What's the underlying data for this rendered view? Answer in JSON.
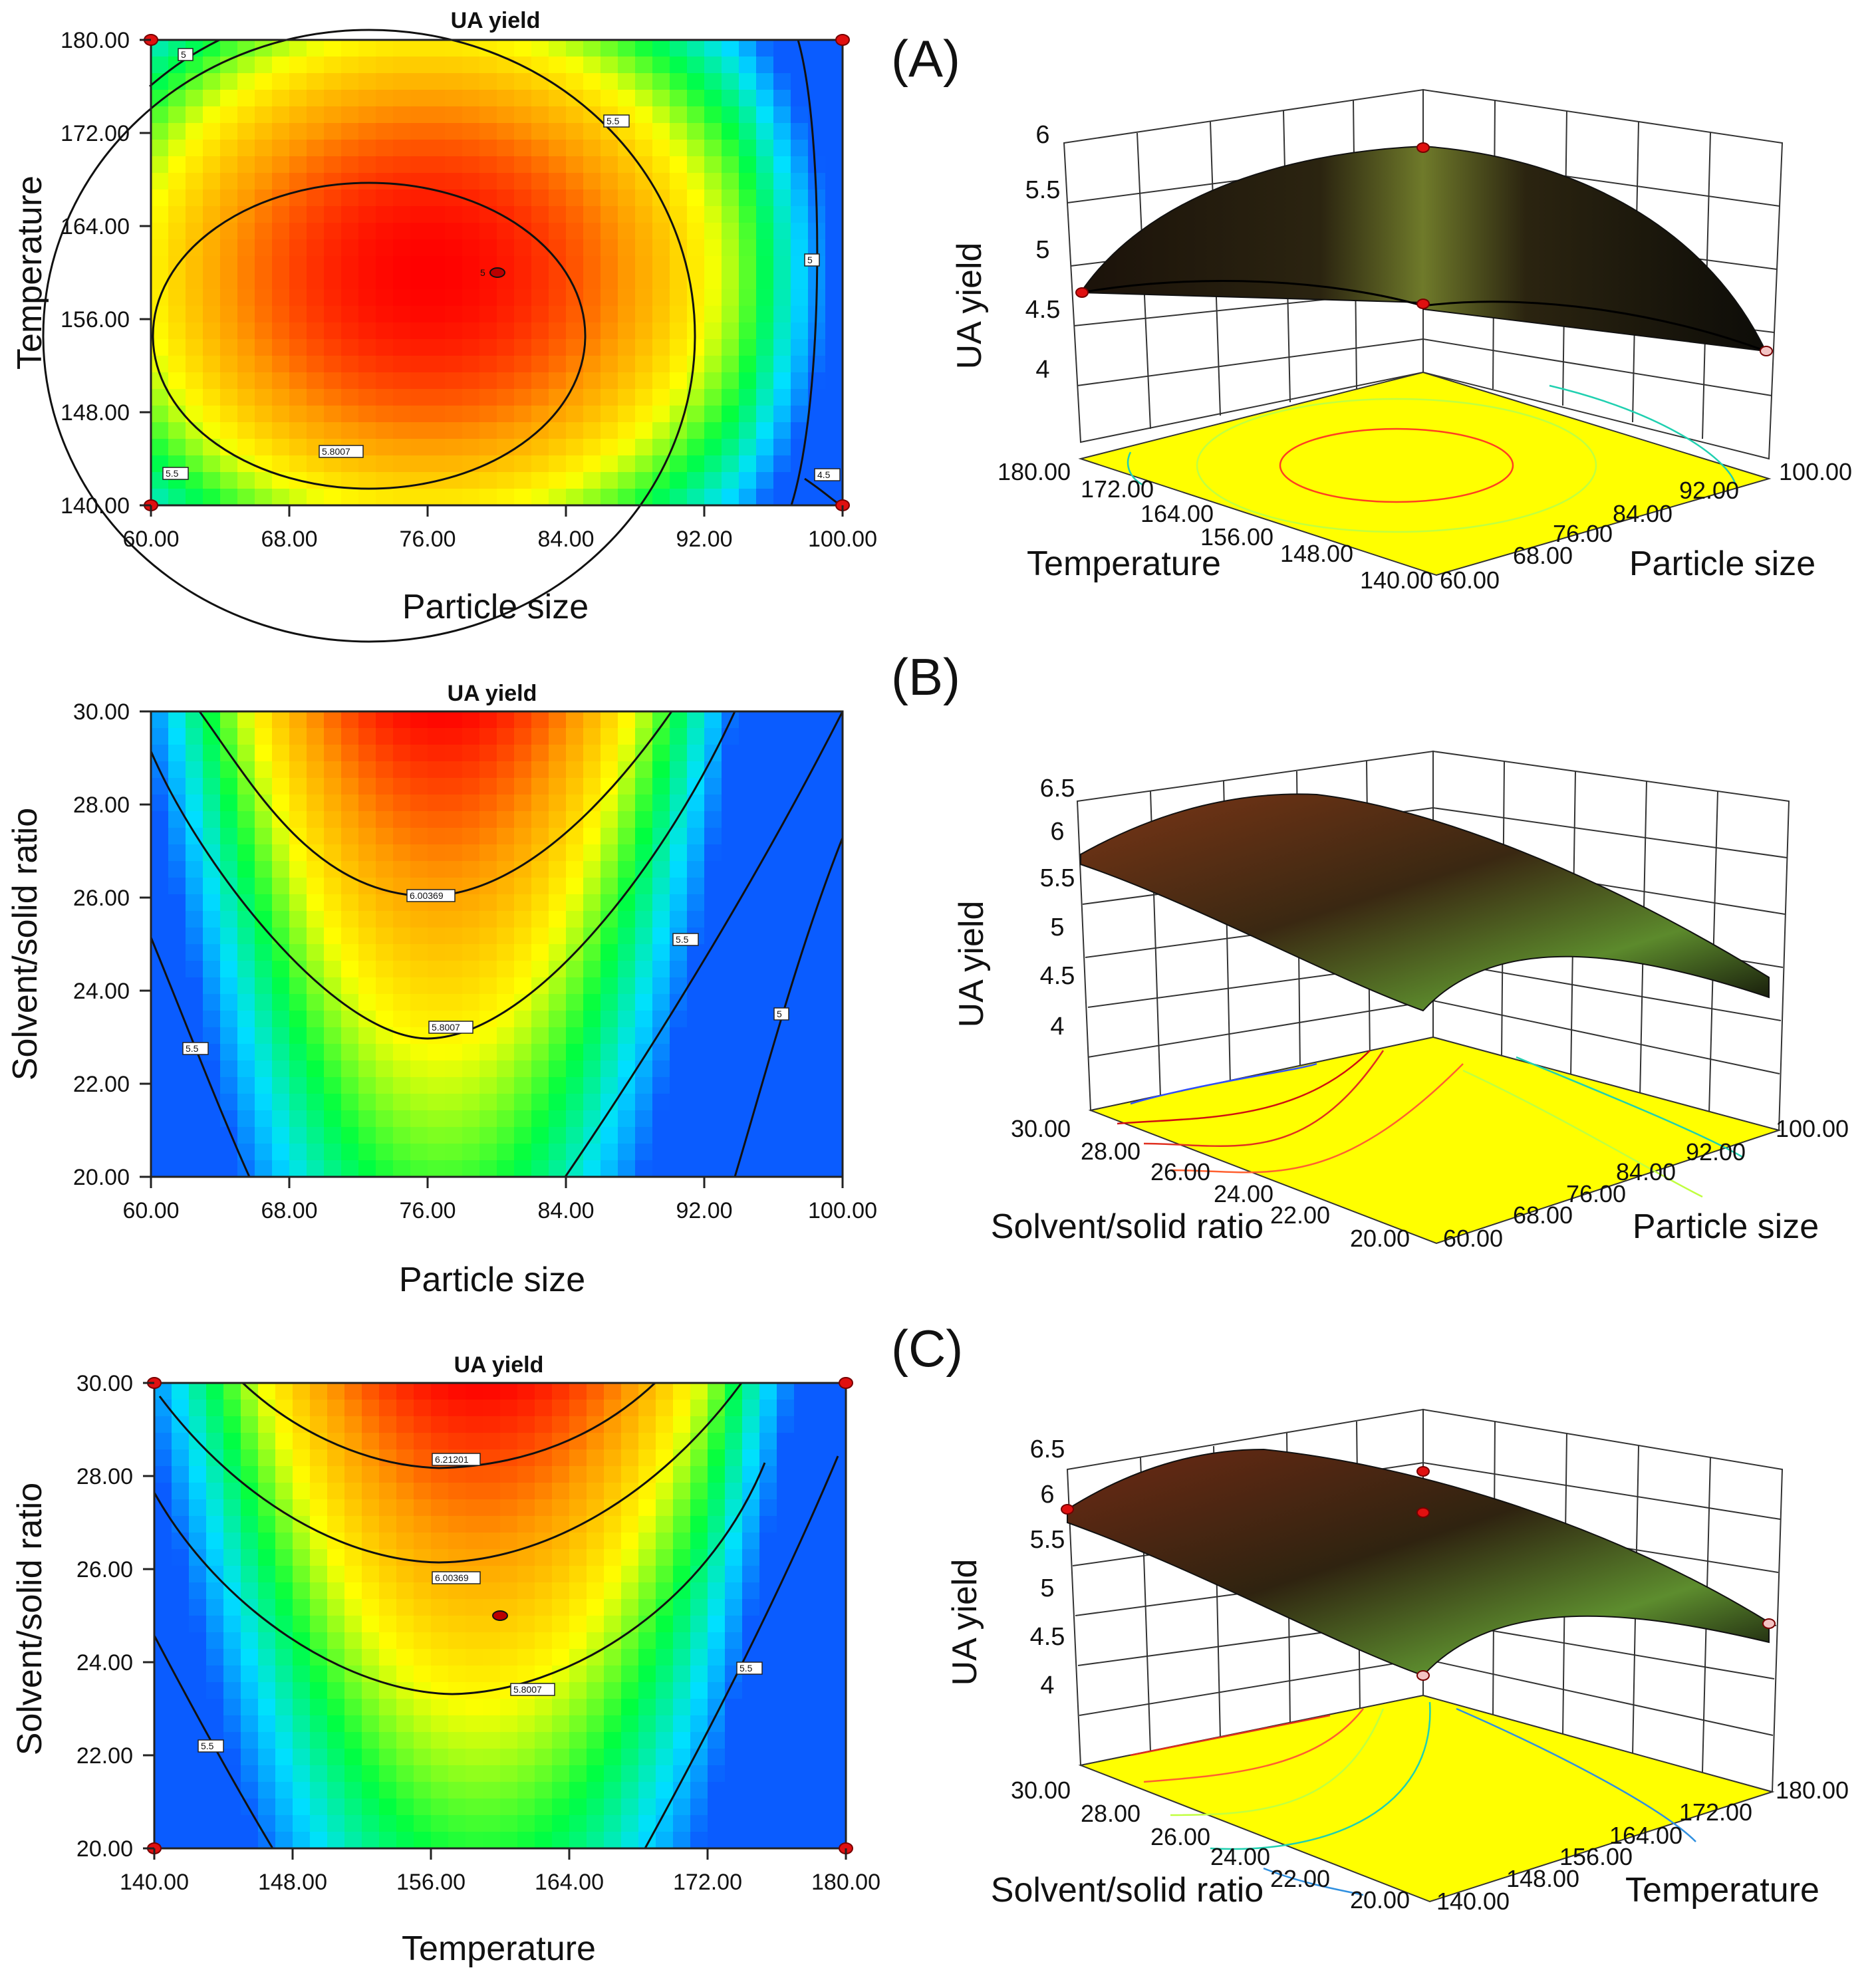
{
  "figure": {
    "panel_labels": [
      "(A)",
      "(B)",
      "(C)"
    ]
  },
  "chart_data": [
    {
      "type": "contour",
      "panel": "(A)",
      "title": "UA yield",
      "xlabel": "Particle size",
      "ylabel": "Temperature",
      "xticks": [
        "60.00",
        "68.00",
        "76.00",
        "84.00",
        "92.00",
        "100.00"
      ],
      "yticks": [
        "140.00",
        "148.00",
        "156.00",
        "164.00",
        "172.00",
        "180.00"
      ],
      "xlim": [
        60,
        100
      ],
      "ylim": [
        140,
        180
      ],
      "colormap": [
        "#0a5cff",
        "#00e0ff",
        "#00ff40",
        "#ffff00",
        "#ff9a00",
        "#ff0000"
      ],
      "contour_levels": [
        4.5,
        5,
        5.5,
        5.8007
      ],
      "contour_labels": [
        "5",
        "5.5",
        "5",
        "5.5",
        "5.8007",
        "4.5",
        "5"
      ],
      "optimum": {
        "x": 80,
        "y": 159.5
      },
      "design_points": [
        {
          "x": 60,
          "y": 180
        },
        {
          "x": 100,
          "y": 180
        },
        {
          "x": 60,
          "y": 140
        },
        {
          "x": 100,
          "y": 140
        }
      ]
    },
    {
      "type": "surface3d",
      "panel": "(A)",
      "zlabel": "UA yield",
      "xlabel": "Temperature",
      "ylabel": "Particle size",
      "zticks": [
        "4",
        "4.5",
        "5",
        "5.5",
        "6"
      ],
      "xticks": [
        "180.00",
        "172.00",
        "164.00",
        "156.00",
        "148.00",
        "140.00"
      ],
      "yticks": [
        "60.00",
        "68.00",
        "76.00",
        "84.00",
        "92.00",
        "100.00"
      ],
      "zlim": [
        4,
        6
      ]
    },
    {
      "type": "contour",
      "panel": "(B)",
      "title": "UA yield",
      "xlabel": "Particle size",
      "ylabel": "Solvent/solid ratio",
      "xticks": [
        "60.00",
        "68.00",
        "76.00",
        "84.00",
        "92.00",
        "100.00"
      ],
      "yticks": [
        "20.00",
        "22.00",
        "24.00",
        "26.00",
        "28.00",
        "30.00"
      ],
      "xlim": [
        60,
        100
      ],
      "ylim": [
        20,
        30
      ],
      "colormap": [
        "#0a5cff",
        "#00e0ff",
        "#00ff40",
        "#ffff00",
        "#ff9a00",
        "#ff0000"
      ],
      "contour_levels": [
        5,
        5.5,
        5.8007,
        6.00369
      ],
      "contour_labels": [
        "6.00369",
        "5.8007",
        "5.5",
        "5.5",
        "5"
      ]
    },
    {
      "type": "surface3d",
      "panel": "(B)",
      "zlabel": "UA yield",
      "xlabel": "Solvent/solid ratio",
      "ylabel": "Particle size",
      "zticks": [
        "4",
        "4.5",
        "5",
        "5.5",
        "6",
        "6.5"
      ],
      "xticks": [
        "30.00",
        "28.00",
        "26.00",
        "24.00",
        "22.00",
        "20.00"
      ],
      "yticks": [
        "60.00",
        "68.00",
        "76.00",
        "84.00",
        "92.00",
        "100.00"
      ],
      "zlim": [
        4,
        6.5
      ]
    },
    {
      "type": "contour",
      "panel": "(C)",
      "title": "UA yield",
      "xlabel": "Temperature",
      "ylabel": "Solvent/solid ratio",
      "xticks": [
        "140.00",
        "148.00",
        "156.00",
        "164.00",
        "172.00",
        "180.00"
      ],
      "yticks": [
        "20.00",
        "22.00",
        "24.00",
        "26.00",
        "28.00",
        "30.00"
      ],
      "xlim": [
        140,
        180
      ],
      "ylim": [
        20,
        30
      ],
      "colormap": [
        "#0a5cff",
        "#00e0ff",
        "#00ff40",
        "#ffff00",
        "#ff9a00",
        "#ff0000"
      ],
      "contour_levels": [
        5.5,
        5.8007,
        6.00369,
        6.21201
      ],
      "contour_labels": [
        "6.21201",
        "6.00369",
        "5.8007",
        "5.5",
        "5.5"
      ],
      "optimum": {
        "x": 160,
        "y": 25
      },
      "design_points": [
        {
          "x": 140,
          "y": 30
        },
        {
          "x": 180,
          "y": 30
        },
        {
          "x": 140,
          "y": 20
        },
        {
          "x": 180,
          "y": 20
        }
      ]
    },
    {
      "type": "surface3d",
      "panel": "(C)",
      "zlabel": "UA yield",
      "xlabel": "Solvent/solid ratio",
      "ylabel": "Temperature",
      "zticks": [
        "4",
        "4.5",
        "5",
        "5.5",
        "6",
        "6.5"
      ],
      "xticks": [
        "30.00",
        "28.00",
        "26.00",
        "24.00",
        "22.00",
        "20.00"
      ],
      "yticks": [
        "140.00",
        "148.00",
        "156.00",
        "164.00",
        "172.00",
        "180.00"
      ],
      "zlim": [
        4,
        6.5
      ]
    }
  ]
}
